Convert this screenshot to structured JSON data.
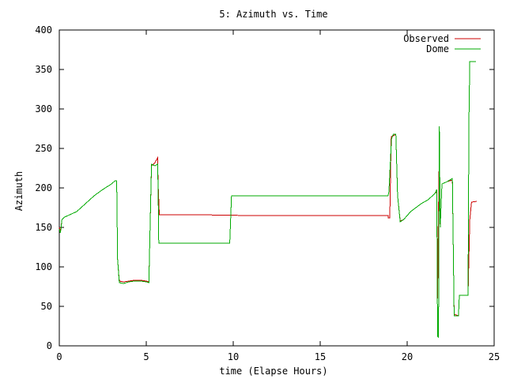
{
  "chart_data": {
    "type": "line",
    "title": "5: Azimuth vs. Time",
    "xlabel": "time (Elapse Hours)",
    "ylabel": "Azimuth",
    "xlim": [
      0,
      25
    ],
    "ylim": [
      0,
      400
    ],
    "x_ticks": [
      0,
      5,
      10,
      15,
      20,
      25
    ],
    "y_ticks": [
      0,
      50,
      100,
      150,
      200,
      250,
      300,
      350,
      400
    ],
    "grid": false,
    "legend_position": "top-right",
    "series": [
      {
        "name": "Observed",
        "color": "#cc0000",
        "points": [
          [
            0.0,
            150
          ],
          [
            0.05,
            145
          ],
          [
            0.1,
            150
          ],
          [
            0.15,
            160
          ],
          [
            0.3,
            163
          ],
          [
            0.5,
            165
          ],
          [
            1.0,
            170
          ],
          [
            1.5,
            180
          ],
          [
            2.0,
            190
          ],
          [
            2.5,
            198
          ],
          [
            3.0,
            205
          ],
          [
            3.2,
            209
          ],
          [
            3.3,
            209
          ],
          [
            3.35,
            110
          ],
          [
            3.45,
            82
          ],
          [
            3.7,
            81
          ],
          [
            4.0,
            82
          ],
          [
            4.3,
            83
          ],
          [
            4.7,
            83
          ],
          [
            5.0,
            82
          ],
          [
            5.15,
            81
          ],
          [
            5.3,
            228
          ],
          [
            5.5,
            232
          ],
          [
            5.65,
            238
          ],
          [
            5.68,
            205
          ],
          [
            5.72,
            185
          ],
          [
            5.75,
            166
          ],
          [
            8.0,
            166
          ],
          [
            11.0,
            165
          ],
          [
            18.0,
            165
          ],
          [
            18.9,
            165
          ],
          [
            18.92,
            162
          ],
          [
            19.0,
            162
          ],
          [
            19.08,
            265
          ],
          [
            19.2,
            266
          ],
          [
            19.35,
            268
          ],
          [
            19.45,
            190
          ],
          [
            19.6,
            158
          ],
          [
            19.8,
            160
          ],
          [
            20.0,
            165
          ],
          [
            20.2,
            170
          ],
          [
            20.5,
            175
          ],
          [
            20.8,
            180
          ],
          [
            21.2,
            185
          ],
          [
            21.6,
            193
          ],
          [
            21.7,
            195
          ],
          [
            21.75,
            60
          ],
          [
            21.8,
            170
          ],
          [
            21.85,
            255
          ],
          [
            21.9,
            150
          ],
          [
            22.0,
            205
          ],
          [
            22.3,
            208
          ],
          [
            22.6,
            210
          ],
          [
            22.7,
            40
          ],
          [
            22.95,
            38
          ],
          [
            23.0,
            64
          ],
          [
            23.5,
            64
          ],
          [
            23.55,
            113
          ],
          [
            23.6,
            160
          ],
          [
            23.7,
            182
          ],
          [
            24.0,
            183
          ]
        ]
      },
      {
        "name": "Dome",
        "color": "#00aa00",
        "points": [
          [
            0.0,
            148
          ],
          [
            0.05,
            143
          ],
          [
            0.1,
            148
          ],
          [
            0.15,
            160
          ],
          [
            0.3,
            163
          ],
          [
            0.5,
            165
          ],
          [
            1.0,
            170
          ],
          [
            1.5,
            180
          ],
          [
            2.0,
            190
          ],
          [
            2.5,
            198
          ],
          [
            3.0,
            205
          ],
          [
            3.2,
            209
          ],
          [
            3.3,
            209
          ],
          [
            3.35,
            110
          ],
          [
            3.45,
            80
          ],
          [
            3.7,
            79
          ],
          [
            4.0,
            81
          ],
          [
            4.3,
            82
          ],
          [
            4.7,
            82
          ],
          [
            5.0,
            81
          ],
          [
            5.15,
            80
          ],
          [
            5.3,
            230
          ],
          [
            5.5,
            228
          ],
          [
            5.65,
            230
          ],
          [
            5.68,
            200
          ],
          [
            5.72,
            130
          ],
          [
            9.8,
            130
          ],
          [
            9.85,
            160
          ],
          [
            9.9,
            190
          ],
          [
            18.9,
            190
          ],
          [
            18.95,
            195
          ],
          [
            19.05,
            240
          ],
          [
            19.1,
            262
          ],
          [
            19.2,
            268
          ],
          [
            19.35,
            268
          ],
          [
            19.45,
            190
          ],
          [
            19.6,
            157
          ],
          [
            19.8,
            160
          ],
          [
            20.0,
            165
          ],
          [
            20.2,
            170
          ],
          [
            20.5,
            175
          ],
          [
            20.8,
            180
          ],
          [
            21.2,
            185
          ],
          [
            21.6,
            193
          ],
          [
            21.7,
            198
          ],
          [
            21.75,
            12
          ],
          [
            21.8,
            11
          ],
          [
            21.85,
            278
          ],
          [
            21.9,
            150
          ],
          [
            22.0,
            205
          ],
          [
            22.3,
            208
          ],
          [
            22.6,
            212
          ],
          [
            22.7,
            38
          ],
          [
            22.95,
            38
          ],
          [
            23.0,
            64
          ],
          [
            23.5,
            64
          ],
          [
            23.55,
            285
          ],
          [
            23.6,
            360
          ],
          [
            23.95,
            360
          ]
        ]
      }
    ]
  }
}
